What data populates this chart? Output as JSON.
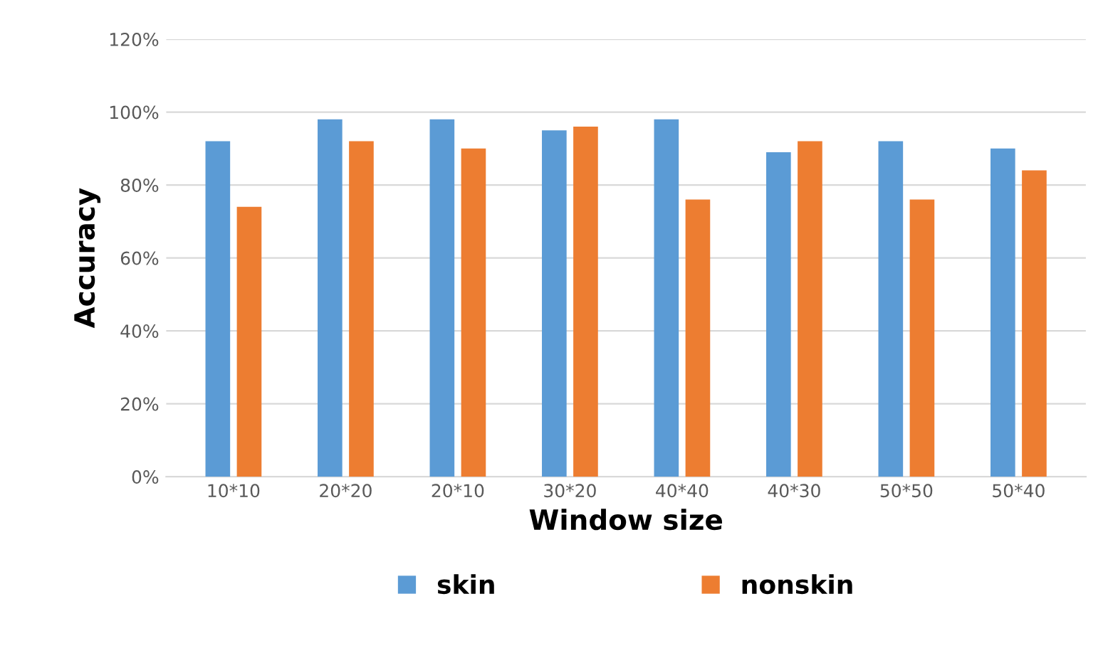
{
  "chart_data": {
    "type": "bar",
    "xlabel": "Window size",
    "ylabel": "Accuracy",
    "categories": [
      "10*10",
      "20*20",
      "20*10",
      "30*20",
      "40*40",
      "40*30",
      "50*50",
      "50*40"
    ],
    "series": [
      {
        "name": "skin",
        "color": "#5b9bd5",
        "values": [
          92,
          98,
          98,
          95,
          98,
          89,
          92,
          90
        ]
      },
      {
        "name": "nonskin",
        "color": "#ed7d31",
        "values": [
          74,
          92,
          90,
          96,
          76,
          92,
          76,
          84
        ]
      }
    ],
    "ylim": [
      0,
      120
    ],
    "yticks": [
      {
        "value": 0,
        "label": "0%"
      },
      {
        "value": 20,
        "label": "20%"
      },
      {
        "value": 40,
        "label": "40%"
      },
      {
        "value": 60,
        "label": "60%"
      },
      {
        "value": 80,
        "label": "80%"
      },
      {
        "value": 100,
        "label": "100%"
      },
      {
        "value": 120,
        "label": "120%"
      }
    ],
    "grid": "y",
    "legend": "bottom"
  }
}
